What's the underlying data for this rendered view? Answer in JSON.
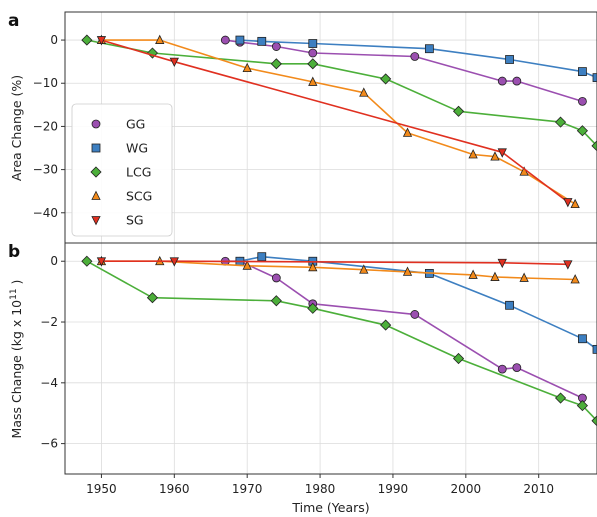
{
  "chart_data": {
    "type": "line",
    "xlabel": "Time (Years)",
    "xlim": [
      1945,
      2018
    ],
    "xticks": [
      1950,
      1960,
      1970,
      1980,
      1990,
      2000,
      2010
    ],
    "panels": [
      {
        "letter": "a",
        "ylabel": "Area Change (%)",
        "ylim": [
          -47,
          6.5
        ],
        "yticks": [
          0,
          -10,
          -20,
          -30,
          -40
        ],
        "legend": {
          "placement": "lower-left"
        },
        "series": [
          {
            "name": "GG",
            "color": "#9b4fb0",
            "marker": "circle",
            "x": [
              1967,
              1969,
              1974,
              1979,
              1993,
              2005,
              2007,
              2016
            ],
            "y": [
              0,
              -0.5,
              -1.5,
              -3,
              -3.8,
              -9.5,
              -9.5,
              -14.2
            ]
          },
          {
            "name": "WG",
            "color": "#3d7fc1",
            "marker": "square",
            "x": [
              1969,
              1972,
              1979,
              1995,
              2006,
              2016,
              2018
            ],
            "y": [
              0,
              -0.3,
              -0.8,
              -2,
              -4.5,
              -7.3,
              -8.7
            ]
          },
          {
            "name": "LCG",
            "color": "#4caf3a",
            "marker": "diamond",
            "x": [
              1948,
              1957,
              1974,
              1979,
              1989,
              1999,
              2013,
              2016,
              2018
            ],
            "y": [
              0,
              -3,
              -5.5,
              -5.5,
              -9,
              -16.5,
              -19,
              -21,
              -24.5
            ]
          },
          {
            "name": "SCG",
            "color": "#f28a1b",
            "marker": "triangle-up",
            "x": [
              1950,
              1958,
              1970,
              1979,
              1986,
              1992,
              2001,
              2004,
              2008,
              2015
            ],
            "y": [
              0,
              0,
              -6.5,
              -9.7,
              -12.2,
              -21.5,
              -26.5,
              -27,
              -30.5,
              -38
            ]
          },
          {
            "name": "SG",
            "color": "#e03020",
            "marker": "triangle-down",
            "x": [
              1950,
              1960,
              2005,
              2014
            ],
            "y": [
              0,
              -5,
              -26,
              -37.5
            ]
          }
        ]
      },
      {
        "letter": "b",
        "ylabel": "Mass Change (kg x 10",
        "ylabel_exponent": "11",
        "ylabel_suffix": " )",
        "ylim": [
          -7,
          0.6
        ],
        "yticks": [
          0,
          -2,
          -4,
          -6
        ],
        "series": [
          {
            "name": "GG",
            "color": "#9b4fb0",
            "marker": "circle",
            "x": [
              1967,
              1969,
              1974,
              1979,
              1993,
              2005,
              2007,
              2016
            ],
            "y": [
              0,
              0,
              -0.55,
              -1.4,
              -1.75,
              -3.55,
              -3.5,
              -4.5
            ]
          },
          {
            "name": "WG",
            "color": "#3d7fc1",
            "marker": "square",
            "x": [
              1969,
              1972,
              1979,
              1995,
              2006,
              2016,
              2018
            ],
            "y": [
              0,
              0.15,
              0,
              -0.4,
              -1.45,
              -2.55,
              -2.9
            ]
          },
          {
            "name": "LCG",
            "color": "#4caf3a",
            "marker": "diamond",
            "x": [
              1948,
              1957,
              1974,
              1979,
              1989,
              1999,
              2013,
              2016,
              2018
            ],
            "y": [
              0,
              -1.2,
              -1.3,
              -1.55,
              -2.1,
              -3.2,
              -4.5,
              -4.75,
              -5.25
            ]
          },
          {
            "name": "SCG",
            "color": "#f28a1b",
            "marker": "triangle-up",
            "x": [
              1950,
              1958,
              1970,
              1979,
              1986,
              1992,
              2001,
              2004,
              2008,
              2015
            ],
            "y": [
              0,
              0,
              -0.15,
              -0.2,
              -0.28,
              -0.35,
              -0.45,
              -0.52,
              -0.55,
              -0.6
            ]
          },
          {
            "name": "SG",
            "color": "#e03020",
            "marker": "triangle-down",
            "x": [
              1950,
              1960,
              2005,
              2014
            ],
            "y": [
              0,
              0,
              -0.05,
              -0.1
            ]
          }
        ]
      }
    ]
  }
}
